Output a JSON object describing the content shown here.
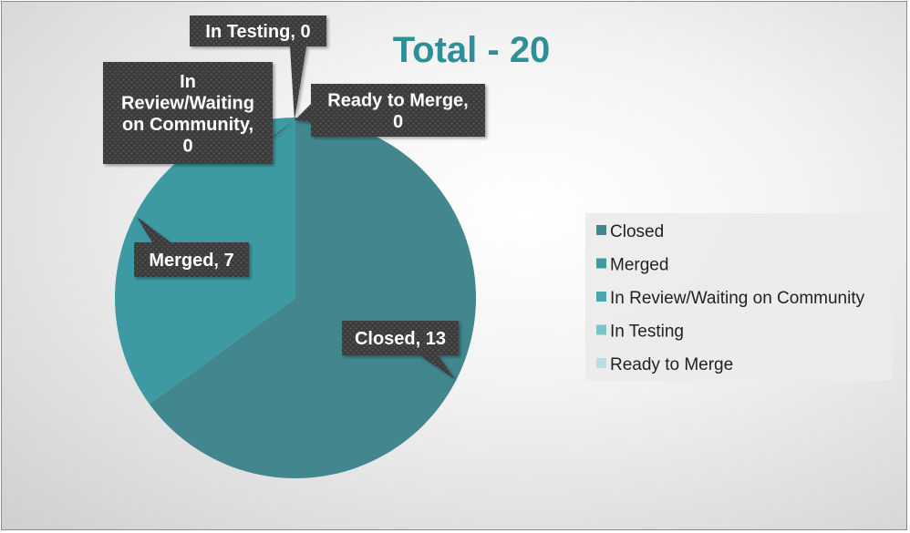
{
  "chart_data": {
    "type": "pie",
    "title": "Total - 20",
    "categories": [
      "Closed",
      "Merged",
      "In Review/Waiting on Community",
      "In Testing",
      "Ready to Merge"
    ],
    "values": [
      13,
      7,
      0,
      0,
      0
    ],
    "colors": [
      "#42878e",
      "#3d9aa3",
      "#4aa6b0",
      "#7bc3cb",
      "#b9dee2"
    ],
    "data_labels": [
      {
        "category": "Closed",
        "lines": [
          "Closed, 13"
        ]
      },
      {
        "category": "Merged",
        "lines": [
          "Merged, 7"
        ]
      },
      {
        "category": "In Review/Waiting on Community",
        "lines": [
          "In",
          "Review/Waiting",
          "on Community,",
          "0"
        ]
      },
      {
        "category": "In Testing",
        "lines": [
          "In Testing, 0"
        ]
      },
      {
        "category": "Ready to Merge",
        "lines": [
          "Ready to Merge,",
          "0"
        ]
      }
    ],
    "legend_position": "right",
    "start_angle": "top (12 o'clock), clockwise"
  }
}
